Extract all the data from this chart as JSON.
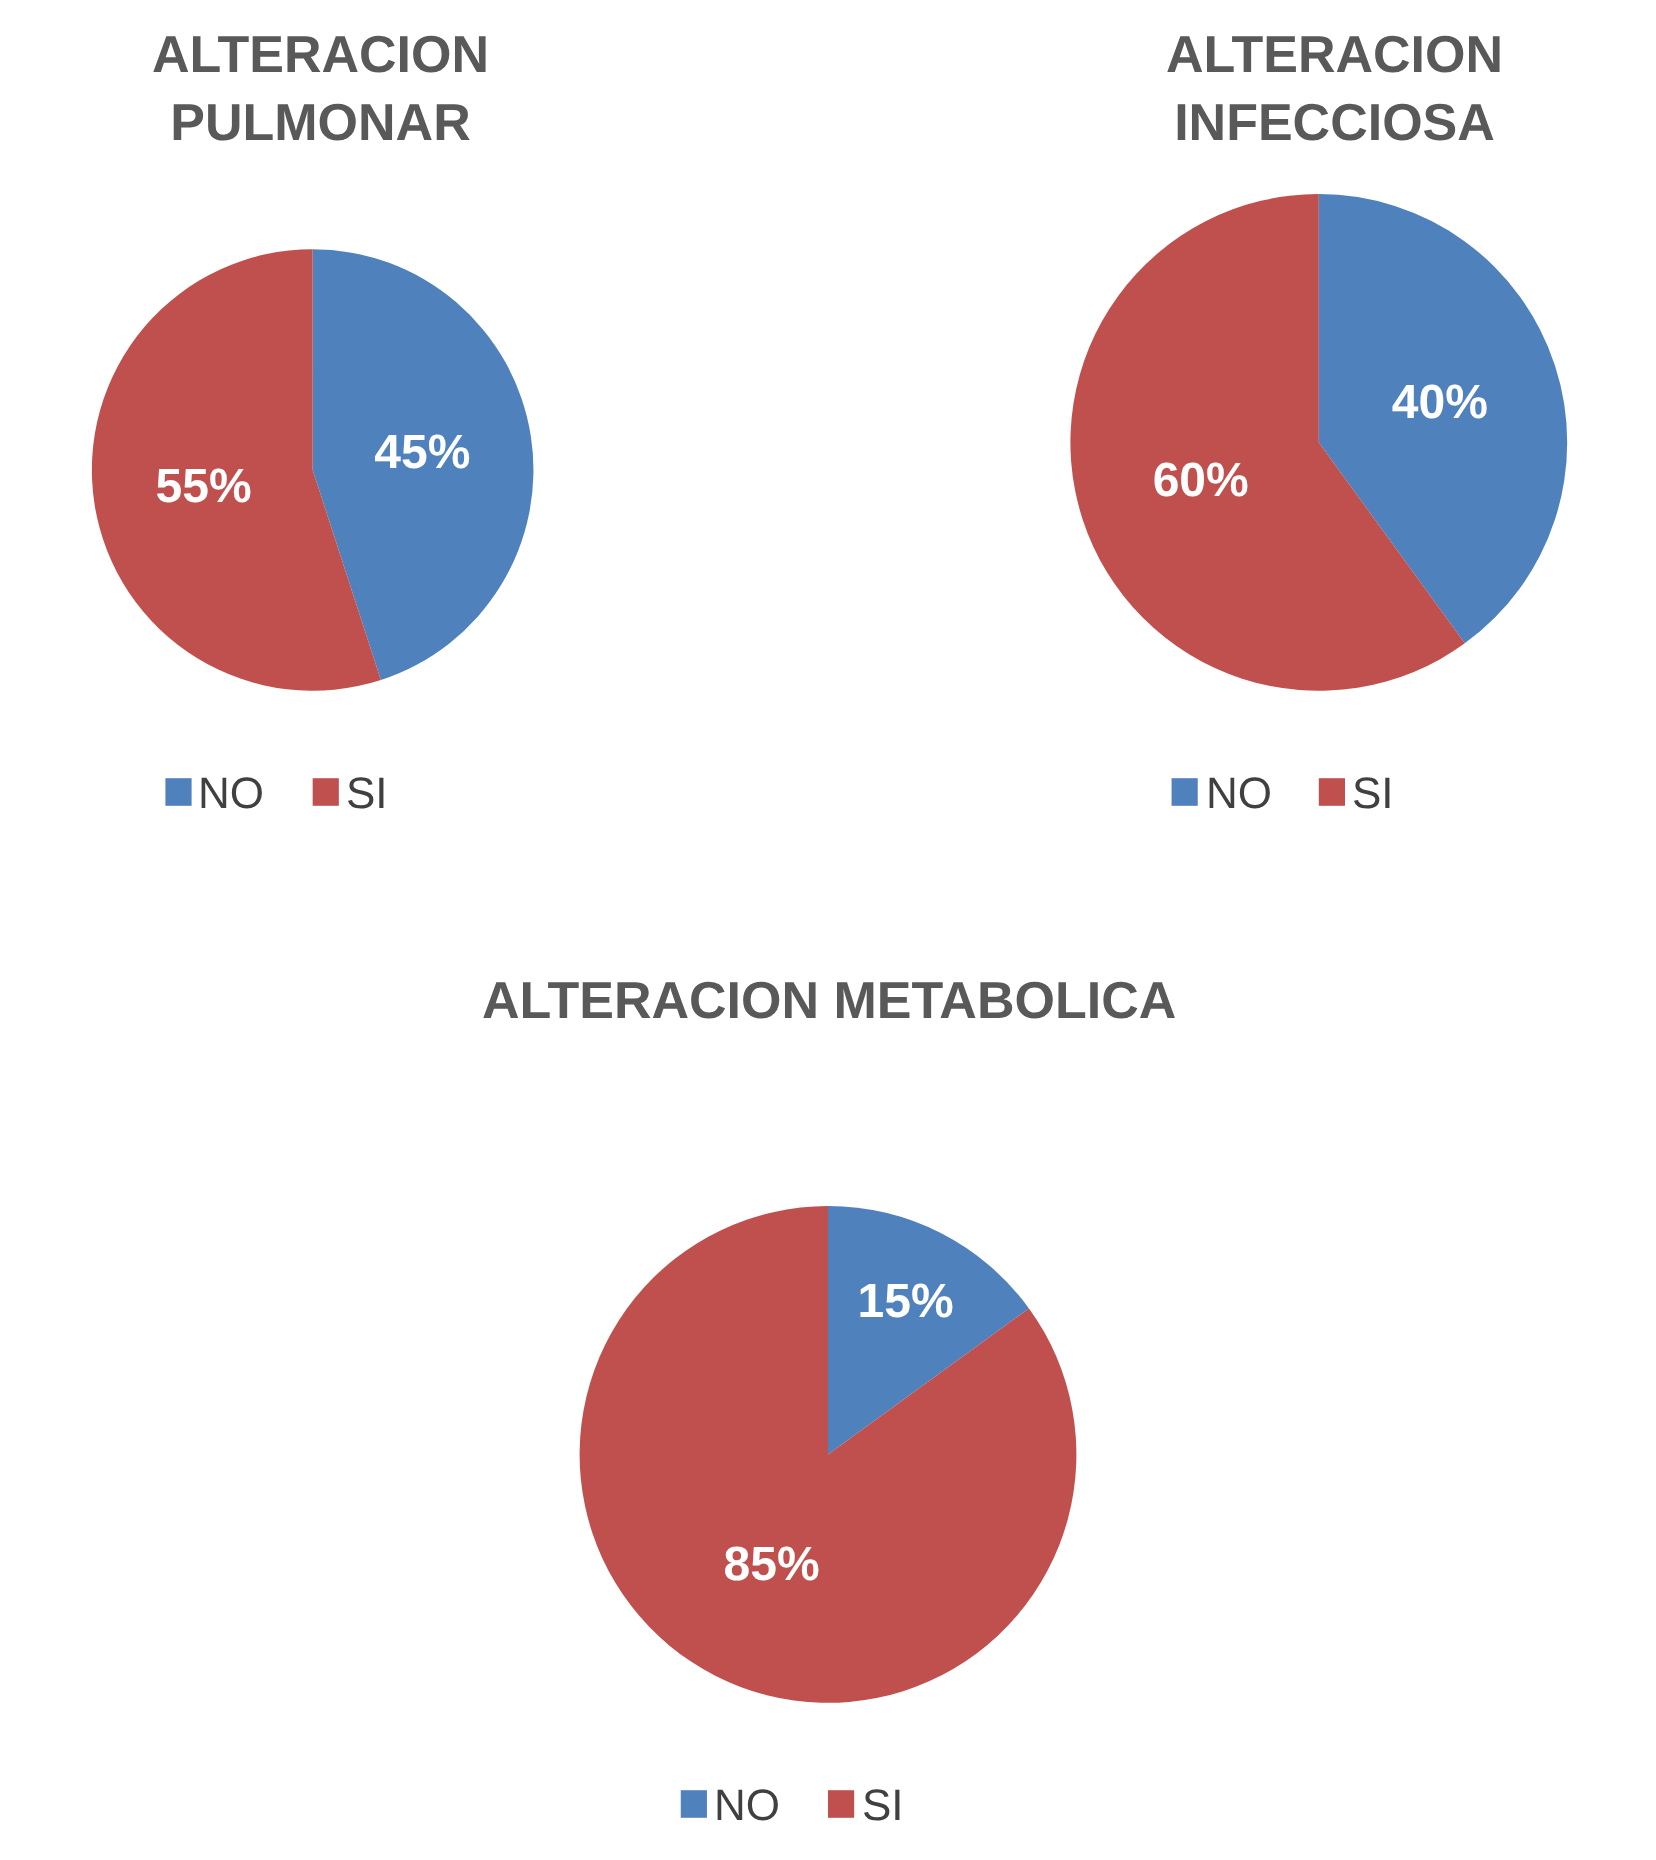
{
  "chart_data": [
    {
      "type": "pie",
      "title": "ALTERACION PULMONAR",
      "categories": [
        "NO",
        "SI"
      ],
      "values": [
        45,
        55
      ],
      "colors": [
        "#4f81bd",
        "#c0504d"
      ],
      "value_labels": [
        "45%",
        "55%"
      ],
      "legend": "bottom"
    },
    {
      "type": "pie",
      "title": "ALTERACION INFECCIOSA",
      "categories": [
        "NO",
        "SI"
      ],
      "values": [
        40,
        60
      ],
      "colors": [
        "#4f81bd",
        "#c0504d"
      ],
      "value_labels": [
        "40%",
        "60%"
      ],
      "legend": "bottom"
    },
    {
      "type": "pie",
      "title": "ALTERACION METABOLICA",
      "categories": [
        "NO",
        "SI"
      ],
      "values": [
        15,
        85
      ],
      "colors": [
        "#4f81bd",
        "#c0504d"
      ],
      "value_labels": [
        "15%",
        "85%"
      ],
      "legend": "bottom"
    }
  ]
}
